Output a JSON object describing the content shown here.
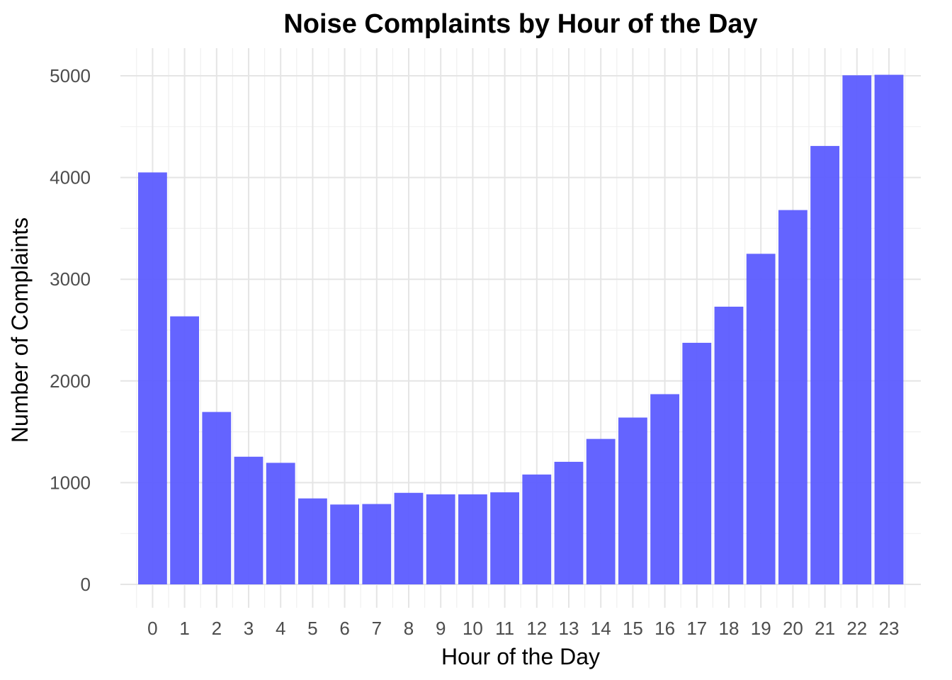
{
  "chart_data": {
    "type": "bar",
    "title": "Noise Complaints by Hour of the Day",
    "xlabel": "Hour of the Day",
    "ylabel": "Number of Complaints",
    "categories": [
      "0",
      "1",
      "2",
      "3",
      "4",
      "5",
      "6",
      "7",
      "8",
      "9",
      "10",
      "11",
      "12",
      "13",
      "14",
      "15",
      "16",
      "17",
      "18",
      "19",
      "20",
      "21",
      "22",
      "23"
    ],
    "values": [
      4050,
      2635,
      1695,
      1255,
      1195,
      845,
      785,
      790,
      900,
      885,
      885,
      905,
      1080,
      1205,
      1430,
      1640,
      1870,
      2375,
      2730,
      3250,
      3680,
      4310,
      5005,
      5010
    ],
    "ylim": [
      0,
      5000
    ],
    "yticks": [
      0,
      1000,
      2000,
      3000,
      4000,
      5000
    ],
    "grid": true,
    "bar_color": "#5c5cff",
    "bar_opacity": 0.95
  }
}
